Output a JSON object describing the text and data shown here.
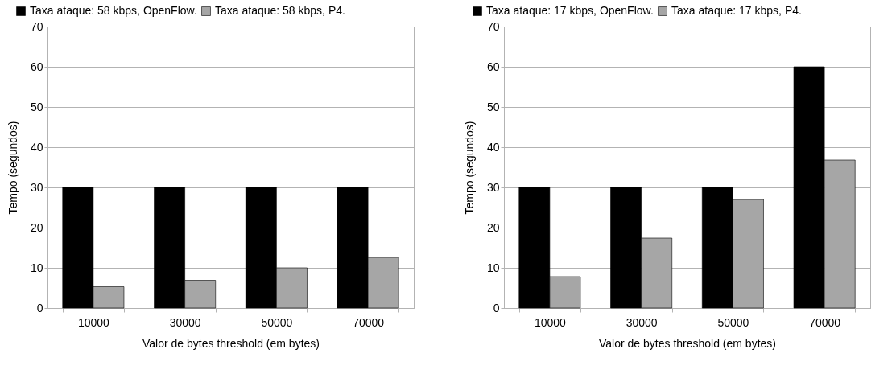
{
  "chart_data": [
    {
      "type": "bar",
      "categories": [
        "10000",
        "30000",
        "50000",
        "70000"
      ],
      "xlabel": "Valor de bytes threshold (em bytes)",
      "ylabel": "Tempo (segundos)",
      "ylim": [
        0,
        70
      ],
      "yticks": [
        0,
        10,
        20,
        30,
        40,
        50,
        60,
        70
      ],
      "grid": "y",
      "legend": "top",
      "series": [
        {
          "name": "Taxa ataque: 58 kbps, OpenFlow.",
          "color": "#000000",
          "values": [
            30,
            30,
            30,
            30
          ]
        },
        {
          "name": "Taxa ataque: 58 kbps, P4.",
          "color": "#a6a6a6",
          "values": [
            5.3,
            6.9,
            10,
            12.6
          ]
        }
      ]
    },
    {
      "type": "bar",
      "categories": [
        "10000",
        "30000",
        "50000",
        "70000"
      ],
      "xlabel": "Valor de bytes threshold (em bytes)",
      "ylabel": "Tempo (segundos)",
      "ylim": [
        0,
        70
      ],
      "yticks": [
        0,
        10,
        20,
        30,
        40,
        50,
        60,
        70
      ],
      "grid": "y",
      "legend": "top",
      "series": [
        {
          "name": "Taxa ataque: 17 kbps, OpenFlow.",
          "color": "#000000",
          "values": [
            30,
            30,
            30,
            60
          ]
        },
        {
          "name": "Taxa ataque: 17 kbps, P4.",
          "color": "#a6a6a6",
          "values": [
            7.8,
            17.4,
            27,
            36.8
          ]
        }
      ]
    }
  ]
}
